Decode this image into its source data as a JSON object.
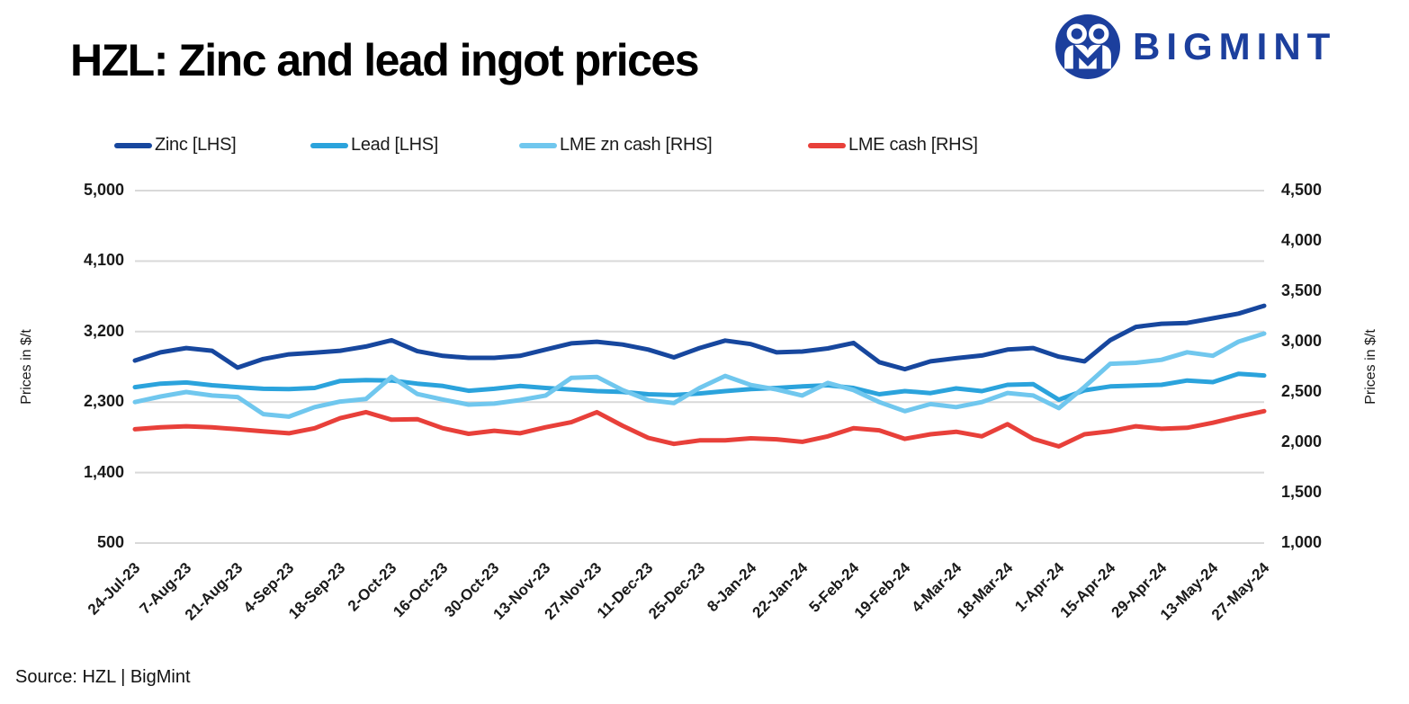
{
  "page": {
    "title": "HZL: Zinc and lead ingot prices",
    "source": "Source: HZL | BigMint"
  },
  "brand": {
    "name": "BIGMINT",
    "color": "#1c3f9d"
  },
  "colors": {
    "grid": "#d9d9d9",
    "text": "#1a1a1a",
    "background": "#ffffff"
  },
  "chart_data": {
    "type": "line",
    "title": "HZL: Zinc and lead ingot prices",
    "grid": true,
    "legend_position": "top",
    "x": [
      "24-Jul-23",
      "31-Jul-23",
      "7-Aug-23",
      "14-Aug-23",
      "21-Aug-23",
      "28-Aug-23",
      "4-Sep-23",
      "11-Sep-23",
      "18-Sep-23",
      "25-Sep-23",
      "2-Oct-23",
      "9-Oct-23",
      "16-Oct-23",
      "23-Oct-23",
      "30-Oct-23",
      "6-Nov-23",
      "13-Nov-23",
      "20-Nov-23",
      "27-Nov-23",
      "4-Dec-23",
      "11-Dec-23",
      "18-Dec-23",
      "25-Dec-23",
      "1-Jan-24",
      "8-Jan-24",
      "15-Jan-24",
      "22-Jan-24",
      "29-Jan-24",
      "5-Feb-24",
      "12-Feb-24",
      "19-Feb-24",
      "26-Feb-24",
      "4-Mar-24",
      "11-Mar-24",
      "18-Mar-24",
      "25-Mar-24",
      "1-Apr-24",
      "8-Apr-24",
      "15-Apr-24",
      "22-Apr-24",
      "29-Apr-24",
      "6-May-24",
      "13-May-24",
      "20-May-24",
      "27-May-24"
    ],
    "x_tick_labels": [
      "24-Jul-23",
      "7-Aug-23",
      "21-Aug-23",
      "4-Sep-23",
      "18-Sep-23",
      "2-Oct-23",
      "16-Oct-23",
      "30-Oct-23",
      "13-Nov-23",
      "27-Nov-23",
      "11-Dec-23",
      "25-Dec-23",
      "8-Jan-24",
      "22-Jan-24",
      "5-Feb-24",
      "19-Feb-24",
      "4-Mar-24",
      "18-Mar-24",
      "1-Apr-24",
      "15-Apr-24",
      "29-Apr-24",
      "13-May-24",
      "27-May-24"
    ],
    "left_axis": {
      "label": "Prices in $/t",
      "min": 500,
      "max": 5000,
      "ticks": [
        {
          "v": 5000,
          "label": "5,000"
        },
        {
          "v": 4100,
          "label": "4,100"
        },
        {
          "v": 3200,
          "label": "3,200"
        },
        {
          "v": 2300,
          "label": "2,300"
        },
        {
          "v": 1400,
          "label": "1,400"
        },
        {
          "v": 500,
          "label": "500"
        }
      ]
    },
    "right_axis": {
      "label": "Prices in $/t",
      "min": 1000,
      "max": 4500,
      "ticks": [
        {
          "v": 4500,
          "label": "4,500"
        },
        {
          "v": 4000,
          "label": "4,000"
        },
        {
          "v": 3500,
          "label": "3,500"
        },
        {
          "v": 3000,
          "label": "3,000"
        },
        {
          "v": 2500,
          "label": "2,500"
        },
        {
          "v": 2000,
          "label": "2,000"
        },
        {
          "v": 1500,
          "label": "1,500"
        },
        {
          "v": 1000,
          "label": "1,000"
        }
      ]
    },
    "series": [
      {
        "name": "Zinc [LHS]",
        "axis": "left",
        "color": "#17479e",
        "values": [
          2830,
          2935,
          2990,
          2955,
          2740,
          2850,
          2910,
          2930,
          2955,
          3010,
          3090,
          2950,
          2890,
          2865,
          2865,
          2890,
          2970,
          3050,
          3070,
          3035,
          2970,
          2870,
          2990,
          3085,
          3040,
          2935,
          2945,
          2985,
          3055,
          2810,
          2720,
          2820,
          2860,
          2895,
          2970,
          2990,
          2880,
          2820,
          3090,
          3260,
          3300,
          3310,
          3370,
          3430,
          3530
        ]
      },
      {
        "name": "Lead [LHS]",
        "axis": "left",
        "color": "#2ba3dc",
        "values": [
          2490,
          2535,
          2550,
          2515,
          2490,
          2470,
          2465,
          2480,
          2570,
          2580,
          2575,
          2535,
          2505,
          2445,
          2470,
          2505,
          2480,
          2460,
          2440,
          2430,
          2400,
          2390,
          2410,
          2440,
          2465,
          2480,
          2500,
          2515,
          2480,
          2400,
          2440,
          2415,
          2475,
          2440,
          2520,
          2530,
          2330,
          2450,
          2500,
          2510,
          2520,
          2575,
          2555,
          2660,
          2640
        ]
      },
      {
        "name": "LME zn cash [RHS]",
        "axis": "right",
        "color": "#70c7ee",
        "values": [
          2400,
          2455,
          2500,
          2465,
          2450,
          2280,
          2255,
          2350,
          2405,
          2430,
          2650,
          2480,
          2425,
          2375,
          2385,
          2420,
          2465,
          2640,
          2650,
          2520,
          2420,
          2390,
          2540,
          2660,
          2570,
          2525,
          2465,
          2590,
          2520,
          2400,
          2310,
          2380,
          2350,
          2400,
          2490,
          2465,
          2340,
          2550,
          2780,
          2790,
          2820,
          2895,
          2860,
          3000,
          3080
        ]
      },
      {
        "name": "LME cash [RHS]",
        "axis": "right",
        "color": "#e8403a",
        "values": [
          2130,
          2150,
          2160,
          2150,
          2130,
          2110,
          2090,
          2140,
          2240,
          2300,
          2225,
          2230,
          2140,
          2085,
          2115,
          2090,
          2150,
          2200,
          2300,
          2165,
          2045,
          1985,
          2020,
          2020,
          2040,
          2030,
          2005,
          2060,
          2140,
          2120,
          2035,
          2080,
          2105,
          2060,
          2180,
          2035,
          1960,
          2080,
          2110,
          2160,
          2135,
          2145,
          2195,
          2255,
          2310
        ]
      }
    ]
  }
}
